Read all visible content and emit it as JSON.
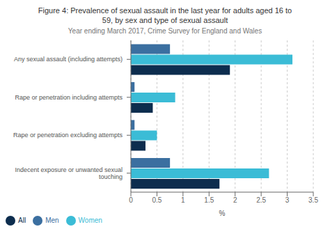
{
  "chart_data": {
    "type": "bar",
    "orientation": "horizontal",
    "title": "Figure 4: Prevalence of sexual assault in the last year for adults aged 16 to\n59, by sex and type of sexual assault",
    "subtitle": "Year ending March 2017, Crime Survey for England and Wales",
    "xlabel": "%",
    "categories": [
      "Any sexual assault (including attempts)",
      "Rape or penetration including attempts",
      "Rape or penetration excluding attempts",
      "Indecent exposure or unwanted sexual\ntouching"
    ],
    "series": [
      {
        "name": "Men",
        "color": "#3b6fa0",
        "values": [
          0.75,
          0.07,
          0.07,
          0.75
        ]
      },
      {
        "name": "Women",
        "color": "#3bbcd6",
        "values": [
          3.1,
          0.85,
          0.5,
          2.65
        ]
      },
      {
        "name": "All",
        "color": "#0d2d4e",
        "values": [
          1.9,
          0.42,
          0.28,
          1.7
        ]
      }
    ],
    "xlim": [
      0,
      3.5
    ],
    "xticks": [
      0,
      0.5,
      1,
      1.5,
      2,
      2.5,
      3,
      3.5
    ],
    "grid": true,
    "legend": "lower left"
  }
}
